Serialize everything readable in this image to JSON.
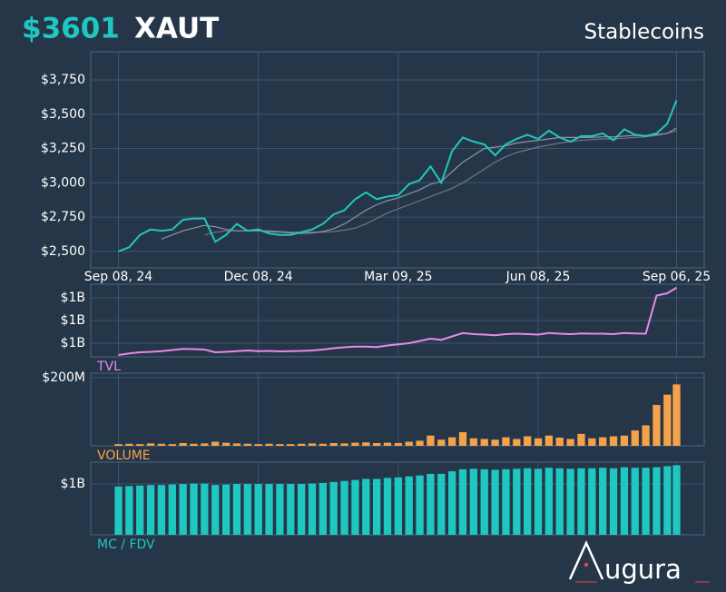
{
  "header": {
    "price": "$3601",
    "symbol": "XAUT",
    "category": "Stablecoins"
  },
  "logo": "ugura",
  "chart_data": [
    {
      "type": "line",
      "x": [
        "2024-09-08",
        "2024-09-15",
        "2024-09-22",
        "2024-09-29",
        "2024-10-06",
        "2024-10-13",
        "2024-10-20",
        "2024-10-27",
        "2024-11-03",
        "2024-11-10",
        "2024-11-17",
        "2024-11-24",
        "2024-12-01",
        "2024-12-08",
        "2024-12-15",
        "2024-12-22",
        "2024-12-29",
        "2025-01-05",
        "2025-01-12",
        "2025-01-19",
        "2025-01-26",
        "2025-02-02",
        "2025-02-09",
        "2025-02-16",
        "2025-02-23",
        "2025-03-02",
        "2025-03-09",
        "2025-03-16",
        "2025-03-23",
        "2025-03-30",
        "2025-04-06",
        "2025-04-13",
        "2025-04-20",
        "2025-04-27",
        "2025-05-04",
        "2025-05-11",
        "2025-05-18",
        "2025-05-25",
        "2025-06-01",
        "2025-06-08",
        "2025-06-15",
        "2025-06-22",
        "2025-06-29",
        "2025-07-06",
        "2025-07-13",
        "2025-07-20",
        "2025-07-27",
        "2025-08-03",
        "2025-08-10",
        "2025-08-17",
        "2025-08-24",
        "2025-08-31",
        "2025-09-06"
      ],
      "xlim": [
        "2024-08-21",
        "2025-09-24"
      ],
      "xticks": [
        {
          "value": "2024-09-08",
          "label": "Sep 08, 24"
        },
        {
          "value": "2024-12-08",
          "label": "Dec 08, 24"
        },
        {
          "value": "2025-03-09",
          "label": "Mar 09, 25"
        },
        {
          "value": "2025-06-08",
          "label": "Jun 08, 25"
        },
        {
          "value": "2025-09-06",
          "label": "Sep 06, 25"
        }
      ],
      "ylim": [
        2380,
        3955
      ],
      "yticks": [
        {
          "value": 2500,
          "label": "$2,500"
        },
        {
          "value": 2750,
          "label": "$2,750"
        },
        {
          "value": 3000,
          "label": "$3,000"
        },
        {
          "value": 3250,
          "label": "$3,250"
        },
        {
          "value": 3500,
          "label": "$3,500"
        },
        {
          "value": 3750,
          "label": "$3,750"
        }
      ],
      "grid": true,
      "series": [
        {
          "color": "#22c7bd",
          "values": [
            2500,
            2530,
            2620,
            2660,
            2650,
            2660,
            2730,
            2740,
            2740,
            2570,
            2620,
            2700,
            2650,
            2660,
            2630,
            2620,
            2620,
            2640,
            2660,
            2700,
            2770,
            2800,
            2880,
            2930,
            2880,
            2900,
            2910,
            2990,
            3020,
            3120,
            3000,
            3230,
            3330,
            3300,
            3280,
            3200,
            3280,
            3320,
            3350,
            3320,
            3380,
            3330,
            3300,
            3340,
            3340,
            3360,
            3310,
            3390,
            3350,
            3340,
            3360,
            3430,
            3601
          ]
        },
        {
          "color": "#8a96a3",
          "values": [
            null,
            null,
            null,
            null,
            2590,
            2620,
            2650,
            2670,
            2690,
            2680,
            2660,
            2650,
            2650,
            2650,
            2645,
            2640,
            2635,
            2630,
            2635,
            2645,
            2665,
            2700,
            2750,
            2800,
            2840,
            2870,
            2890,
            2920,
            2950,
            2990,
            3010,
            3080,
            3150,
            3200,
            3250,
            3260,
            3270,
            3290,
            3300,
            3310,
            3320,
            3330,
            3330,
            3330,
            3330,
            3335,
            3335,
            3340,
            3345,
            3345,
            3350,
            3360,
            3400
          ]
        },
        {
          "color": "#6c7988",
          "values": [
            null,
            null,
            null,
            null,
            null,
            null,
            null,
            null,
            2620,
            2640,
            2650,
            2650,
            2650,
            2650,
            2650,
            2645,
            2640,
            2640,
            2640,
            2640,
            2645,
            2655,
            2670,
            2700,
            2740,
            2780,
            2810,
            2840,
            2870,
            2900,
            2930,
            2960,
            3000,
            3050,
            3100,
            3150,
            3190,
            3220,
            3240,
            3260,
            3275,
            3290,
            3300,
            3310,
            3315,
            3320,
            3320,
            3325,
            3330,
            3335,
            3345,
            3360,
            3380
          ]
        }
      ]
    },
    {
      "type": "line",
      "label": "TVL",
      "color": "#e88ae8",
      "values": [
        1048000000.0,
        1055000000.0,
        1060000000.0,
        1062000000.0,
        1065000000.0,
        1070000000.0,
        1075000000.0,
        1074000000.0,
        1072000000.0,
        1060000000.0,
        1062000000.0,
        1065000000.0,
        1068000000.0,
        1065000000.0,
        1066000000.0,
        1064000000.0,
        1065000000.0,
        1066000000.0,
        1068000000.0,
        1072000000.0,
        1078000000.0,
        1082000000.0,
        1085000000.0,
        1085000000.0,
        1083000000.0,
        1090000000.0,
        1095000000.0,
        1100000000.0,
        1110000000.0,
        1120000000.0,
        1115000000.0,
        1130000000.0,
        1145000000.0,
        1140000000.0,
        1138000000.0,
        1135000000.0,
        1140000000.0,
        1142000000.0,
        1140000000.0,
        1138000000.0,
        1145000000.0,
        1142000000.0,
        1140000000.0,
        1143000000.0,
        1142000000.0,
        1142000000.0,
        1140000000.0,
        1145000000.0,
        1143000000.0,
        1142000000.0,
        1310000000.0,
        1320000000.0,
        1345000000.0
      ],
      "ylim": [
        1040000000.0,
        1360000000.0
      ],
      "yticks": [
        {
          "value": 1100000000.0,
          "label": "$1B"
        },
        {
          "value": 1200000000.0,
          "label": "$1B"
        },
        {
          "value": 1300000000.0,
          "label": "$1B"
        }
      ],
      "grid": true
    },
    {
      "type": "bar",
      "label": "VOLUME",
      "color": "#f5a24b",
      "values": [
        5000000.0,
        6000000.0,
        5000000.0,
        7000000.0,
        6000000.0,
        5000000.0,
        8000000.0,
        6000000.0,
        7000000.0,
        12000000.0,
        9000000.0,
        7000000.0,
        6000000.0,
        5000000.0,
        6000000.0,
        5000000.0,
        5000000.0,
        6000000.0,
        7000000.0,
        6000000.0,
        8000000.0,
        7000000.0,
        9000000.0,
        10000000.0,
        8000000.0,
        9000000.0,
        8000000.0,
        12000000.0,
        15000000.0,
        30000000.0,
        18000000.0,
        25000000.0,
        40000000.0,
        22000000.0,
        20000000.0,
        18000000.0,
        25000000.0,
        20000000.0,
        28000000.0,
        22000000.0,
        30000000.0,
        24000000.0,
        20000000.0,
        35000000.0,
        22000000.0,
        25000000.0,
        28000000.0,
        30000000.0,
        45000000.0,
        60000000.0,
        120000000.0,
        150000000.0,
        180000000.0
      ],
      "ylim": [
        0,
        213000000.0
      ],
      "yticks": [
        {
          "value": 200000000.0,
          "label": "$200M"
        }
      ],
      "grid": true
    },
    {
      "type": "bar",
      "label": "MC / FDV",
      "color": "#1ec8c0",
      "values": [
        950000000.0,
        960000000.0,
        970000000.0,
        980000000.0,
        980000000.0,
        990000000.0,
        1000000000.0,
        1010000000.0,
        1010000000.0,
        980000000.0,
        990000000.0,
        1000000000.0,
        1000000000.0,
        1000000000.0,
        1000000000.0,
        1000000000.0,
        1000000000.0,
        1000000000.0,
        1010000000.0,
        1020000000.0,
        1040000000.0,
        1060000000.0,
        1080000000.0,
        1100000000.0,
        1100000000.0,
        1120000000.0,
        1130000000.0,
        1150000000.0,
        1170000000.0,
        1200000000.0,
        1200000000.0,
        1250000000.0,
        1290000000.0,
        1300000000.0,
        1290000000.0,
        1280000000.0,
        1290000000.0,
        1300000000.0,
        1310000000.0,
        1300000000.0,
        1320000000.0,
        1310000000.0,
        1300000000.0,
        1310000000.0,
        1310000000.0,
        1320000000.0,
        1310000000.0,
        1330000000.0,
        1320000000.0,
        1320000000.0,
        1330000000.0,
        1350000000.0,
        1370000000.0
      ],
      "ylim": [
        0,
        1430000000.0
      ],
      "yticks": [
        {
          "value": 1000000000.0,
          "label": "$1B"
        }
      ],
      "grid": true
    }
  ]
}
